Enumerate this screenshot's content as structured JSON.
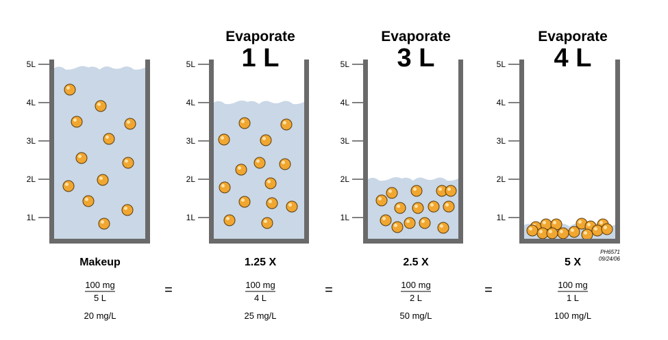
{
  "axis_ticks": [
    "5L",
    "4L",
    "3L",
    "2L",
    "1L"
  ],
  "colors": {
    "liquid": "#c9d7e6",
    "wall": "#6a6a6a",
    "particle": "#f0a630",
    "particle_edge": "#5a3a0a"
  },
  "panels": [
    {
      "id": "makeup",
      "heading": "",
      "amount": "",
      "liquid_level_L": 4.9,
      "particle_count": 13,
      "caption": "Makeup",
      "numerator": "100 mg",
      "denominator": "5 L",
      "concentration": "20 mg/L"
    },
    {
      "id": "evap1",
      "heading": "Evaporate",
      "amount": "1 L",
      "liquid_level_L": 4.0,
      "particle_count": 17,
      "caption": "1.25 X",
      "numerator": "100 mg",
      "denominator": "4 L",
      "concentration": "25 mg/L"
    },
    {
      "id": "evap3",
      "heading": "Evaporate",
      "amount": "3 L",
      "liquid_level_L": 2.0,
      "particle_count": 16,
      "caption": "2.5 X",
      "numerator": "100 mg",
      "denominator": "2 L",
      "concentration": "50 mg/L"
    },
    {
      "id": "evap4",
      "heading": "Evaporate",
      "amount": "4 L",
      "liquid_level_L": 0.8,
      "particle_count": 14,
      "caption": "5 X",
      "numerator": "100 mg",
      "denominator": "1 L",
      "concentration": "100 mg/L"
    }
  ],
  "equals": [
    "=",
    "=",
    "="
  ],
  "reference": {
    "code": "PH6571",
    "date": "09/24/06"
  }
}
